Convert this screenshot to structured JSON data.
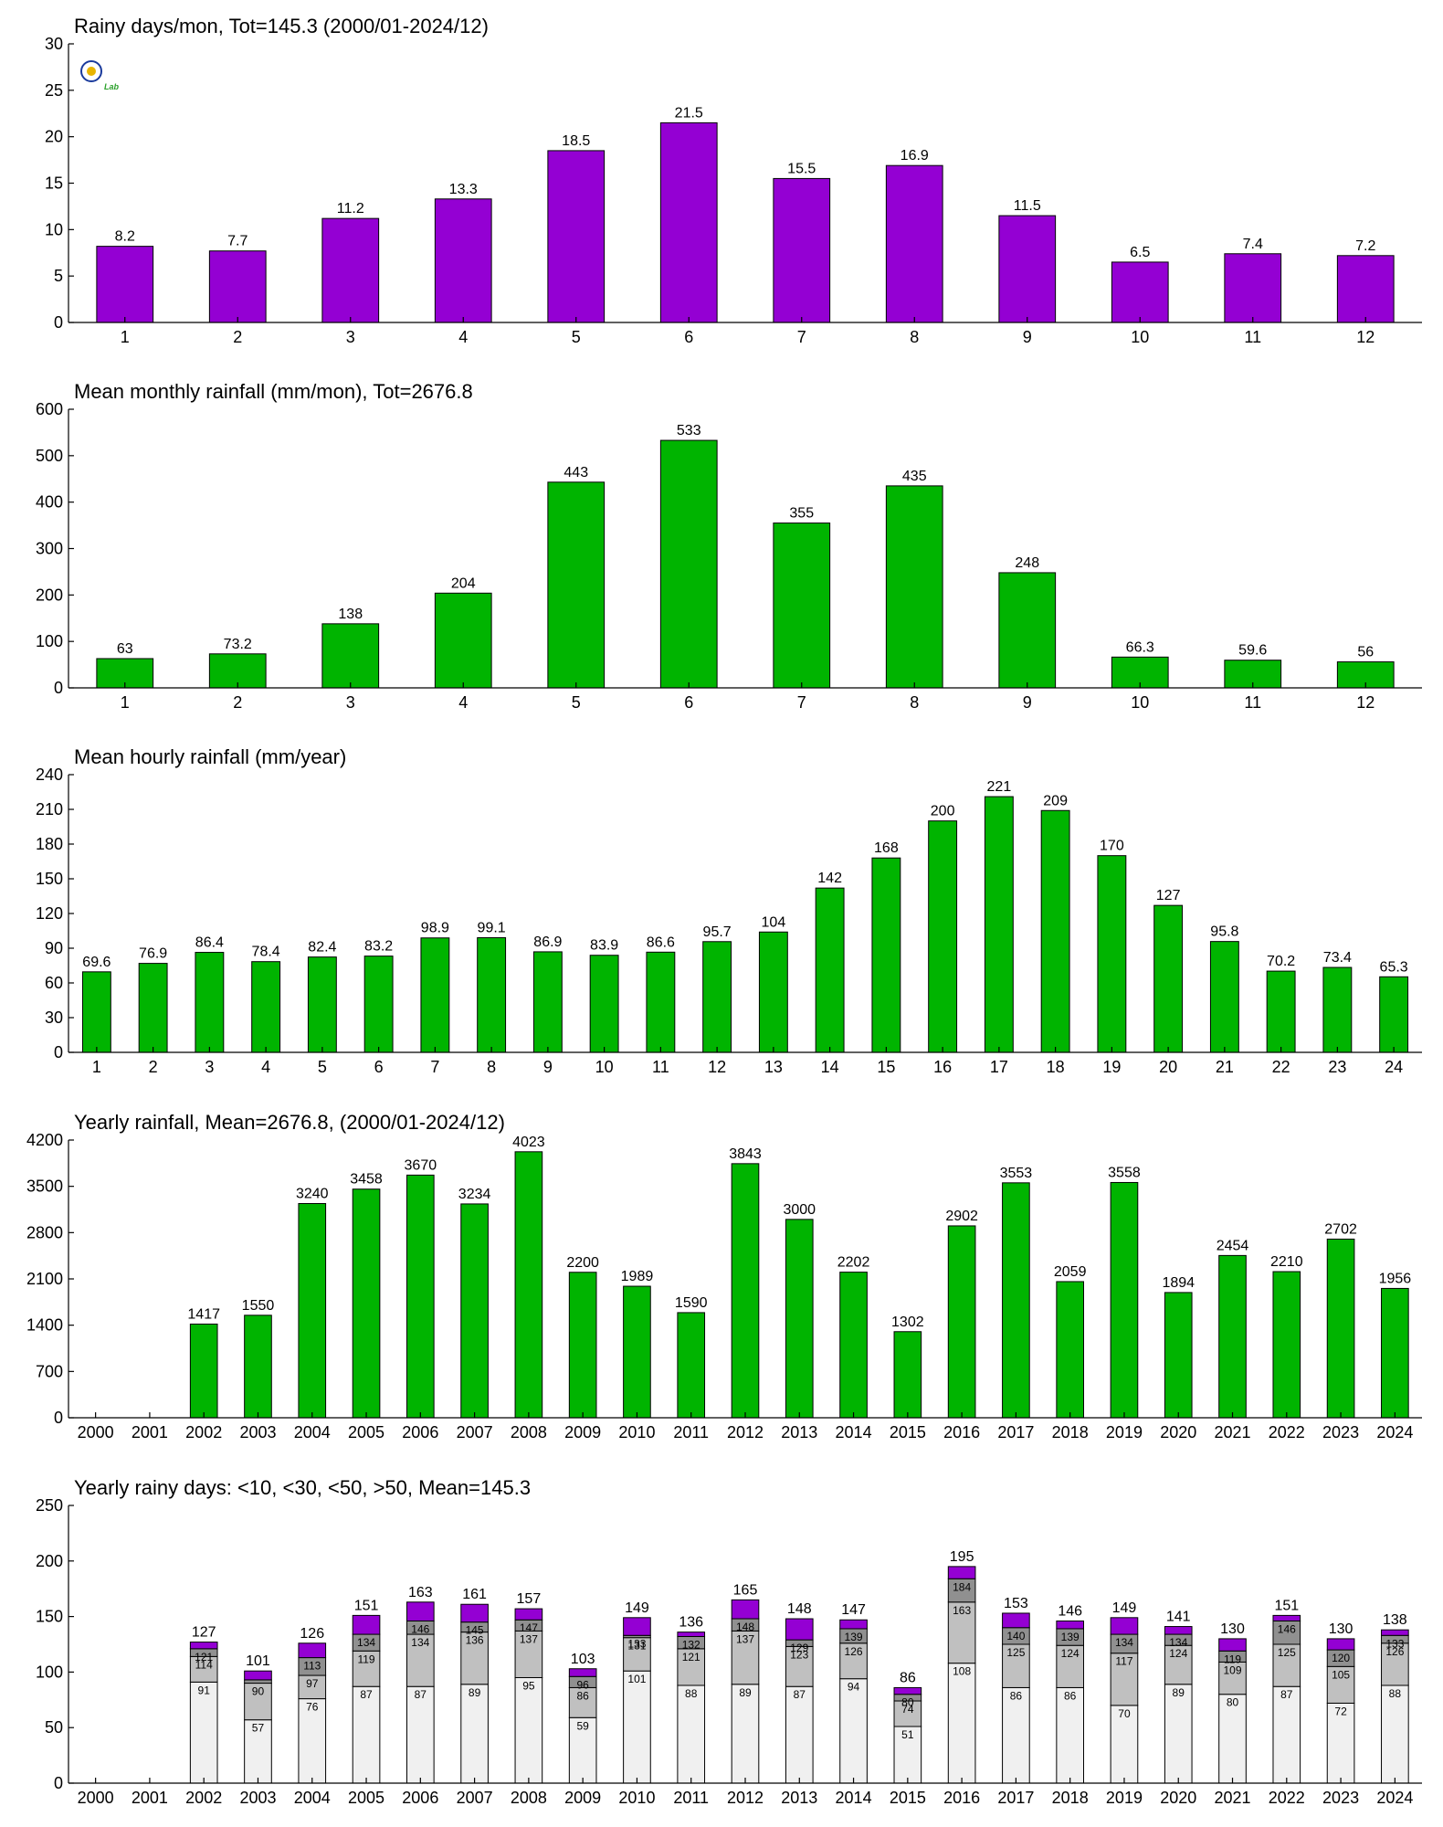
{
  "colors": {
    "purple": "#9400d3",
    "green": "#00b400",
    "seg1": "#f0f0f0",
    "seg2": "#c0c0c0",
    "seg3": "#909090",
    "seg4": "#9400d3"
  },
  "logo": {
    "icon": "lab-logo-icon",
    "text": "Lab"
  },
  "chart_data": [
    {
      "type": "bar",
      "title": "Rainy days/mon, Tot=145.3 (2000/01-2024/12)",
      "categories": [
        "1",
        "2",
        "3",
        "4",
        "5",
        "6",
        "7",
        "8",
        "9",
        "10",
        "11",
        "12"
      ],
      "values": [
        8.2,
        7.7,
        11.2,
        13.3,
        18.5,
        21.5,
        15.5,
        16.9,
        11.5,
        6.5,
        7.4,
        7.2
      ],
      "labels": [
        "8.2",
        "7.7",
        "11.2",
        "13.3",
        "18.5",
        "21.5",
        "15.5",
        "16.9",
        "11.5",
        "6.5",
        "7.4",
        "7.2"
      ],
      "ylim": [
        0,
        30
      ],
      "yticks": [
        0,
        5,
        10,
        15,
        20,
        25,
        30
      ],
      "color": "#9400d3"
    },
    {
      "type": "bar",
      "title": "Mean monthly rainfall (mm/mon), Tot=2676.8",
      "categories": [
        "1",
        "2",
        "3",
        "4",
        "5",
        "6",
        "7",
        "8",
        "9",
        "10",
        "11",
        "12"
      ],
      "values": [
        63,
        73.2,
        138,
        204,
        443,
        533,
        355,
        435,
        248,
        66.3,
        59.6,
        56
      ],
      "labels": [
        "63",
        "73.2",
        "138",
        "204",
        "443",
        "533",
        "355",
        "435",
        "248",
        "66.3",
        "59.6",
        "56"
      ],
      "ylim": [
        0,
        600
      ],
      "yticks": [
        0,
        100,
        200,
        300,
        400,
        500,
        600
      ],
      "color": "#00b400"
    },
    {
      "type": "bar",
      "title": "Mean hourly rainfall (mm/year)",
      "categories": [
        "1",
        "2",
        "3",
        "4",
        "5",
        "6",
        "7",
        "8",
        "9",
        "10",
        "11",
        "12",
        "13",
        "14",
        "15",
        "16",
        "17",
        "18",
        "19",
        "20",
        "21",
        "22",
        "23",
        "24"
      ],
      "values": [
        69.6,
        76.9,
        86.4,
        78.4,
        82.4,
        83.2,
        98.9,
        99.1,
        86.9,
        83.9,
        86.6,
        95.7,
        104,
        142,
        168,
        200,
        221,
        209,
        170,
        127,
        95.8,
        70.2,
        73.4,
        65.3
      ],
      "labels": [
        "69.6",
        "76.9",
        "86.4",
        "78.4",
        "82.4",
        "83.2",
        "98.9",
        "99.1",
        "86.9",
        "83.9",
        "86.6",
        "95.7",
        "104",
        "142",
        "168",
        "200",
        "221",
        "209",
        "170",
        "127",
        "95.8",
        "70.2",
        "73.4",
        "65.3"
      ],
      "ylim": [
        0,
        240
      ],
      "yticks": [
        0,
        30,
        60,
        90,
        120,
        150,
        180,
        210,
        240
      ],
      "color": "#00b400"
    },
    {
      "type": "bar",
      "title": "Yearly rainfall, Mean=2676.8, (2000/01-2024/12)",
      "categories": [
        "2000",
        "2001",
        "2002",
        "2003",
        "2004",
        "2005",
        "2006",
        "2007",
        "2008",
        "2009",
        "2010",
        "2011",
        "2012",
        "2013",
        "2014",
        "2015",
        "2016",
        "2017",
        "2018",
        "2019",
        "2020",
        "2021",
        "2022",
        "2023",
        "2024"
      ],
      "values": [
        0,
        0,
        1417,
        1550,
        3240,
        3458,
        3670,
        3234,
        4023,
        2200,
        1989,
        1590,
        3843,
        3000,
        2202,
        1302,
        2902,
        3553,
        2059,
        3558,
        1894,
        2454,
        2210,
        2702,
        1956
      ],
      "labels": [
        "",
        "",
        "1417",
        "1550",
        "3240",
        "3458",
        "3670",
        "3234",
        "4023",
        "2200",
        "1989",
        "1590",
        "3843",
        "3000",
        "2202",
        "1302",
        "2902",
        "3553",
        "2059",
        "3558",
        "1894",
        "2454",
        "2210",
        "2702",
        "1956"
      ],
      "ylim": [
        0,
        4200
      ],
      "yticks": [
        0,
        700,
        1400,
        2100,
        2800,
        3500,
        4200
      ],
      "color": "#00b400"
    },
    {
      "type": "stacked-bar",
      "title": "Yearly rainy days: <10, <30, <50, >50, Mean=145.3",
      "categories": [
        "2000",
        "2001",
        "2002",
        "2003",
        "2004",
        "2005",
        "2006",
        "2007",
        "2008",
        "2009",
        "2010",
        "2011",
        "2012",
        "2013",
        "2014",
        "2015",
        "2016",
        "2017",
        "2018",
        "2019",
        "2020",
        "2021",
        "2022",
        "2023",
        "2024"
      ],
      "cumulative": [
        [
          0,
          0,
          0,
          0
        ],
        [
          0,
          0,
          0,
          0
        ],
        [
          91,
          114,
          121,
          127
        ],
        [
          57,
          90,
          93,
          101
        ],
        [
          76,
          97,
          113,
          126
        ],
        [
          87,
          119,
          134,
          151
        ],
        [
          87,
          134,
          146,
          163
        ],
        [
          89,
          136,
          145,
          161
        ],
        [
          95,
          137,
          147,
          157
        ],
        [
          59,
          86,
          96,
          103
        ],
        [
          101,
          131,
          133,
          149
        ],
        [
          88,
          121,
          132,
          136
        ],
        [
          89,
          137,
          148,
          165
        ],
        [
          87,
          123,
          129,
          148
        ],
        [
          94,
          126,
          139,
          147
        ],
        [
          51,
          74,
          80,
          86
        ],
        [
          108,
          163,
          184,
          195
        ],
        [
          86,
          125,
          140,
          153
        ],
        [
          86,
          124,
          139,
          146
        ],
        [
          70,
          117,
          134,
          149
        ],
        [
          89,
          124,
          134,
          141
        ],
        [
          80,
          109,
          119,
          130
        ],
        [
          87,
          125,
          146,
          151
        ],
        [
          72,
          105,
          120,
          130
        ],
        [
          88,
          126,
          133,
          138
        ]
      ],
      "segment_labels": [
        [
          "",
          "",
          ""
        ],
        [
          "",
          "",
          ""
        ],
        [
          "91",
          "114",
          "121"
        ],
        [
          "57",
          "90",
          ""
        ],
        [
          "76",
          "97",
          "113"
        ],
        [
          "87",
          "119",
          "134"
        ],
        [
          "87",
          "134",
          "146"
        ],
        [
          "89",
          "136",
          "145"
        ],
        [
          "95",
          "137",
          "147"
        ],
        [
          "59",
          "86",
          "96"
        ],
        [
          "101",
          "131",
          "133"
        ],
        [
          "88",
          "121",
          "132"
        ],
        [
          "89",
          "137",
          "148"
        ],
        [
          "87",
          "123",
          "129"
        ],
        [
          "94",
          "126",
          "139"
        ],
        [
          "51",
          "74",
          "80"
        ],
        [
          "108",
          "163",
          "184"
        ],
        [
          "86",
          "125",
          "140"
        ],
        [
          "86",
          "124",
          "139"
        ],
        [
          "70",
          "117",
          "134"
        ],
        [
          "89",
          "124",
          "134"
        ],
        [
          "80",
          "109",
          "119"
        ],
        [
          "87",
          "125",
          "146"
        ],
        [
          "72",
          "105",
          "120"
        ],
        [
          "88",
          "126",
          "133"
        ]
      ],
      "total_labels": [
        "",
        "",
        "127",
        "101",
        "126",
        "151",
        "163",
        "161",
        "157",
        "103",
        "149",
        "136",
        "165",
        "148",
        "147",
        "86",
        "195",
        "153",
        "146",
        "149",
        "141",
        "130",
        "151",
        "130",
        "138"
      ],
      "ylim": [
        0,
        250
      ],
      "yticks": [
        0,
        50,
        100,
        150,
        200,
        250
      ],
      "series": [
        {
          "name": "<10",
          "color": "#f0f0f0"
        },
        {
          "name": "<30",
          "color": "#c0c0c0"
        },
        {
          "name": "<50",
          "color": "#909090"
        },
        {
          "name": ">50",
          "color": "#9400d3"
        }
      ]
    }
  ]
}
